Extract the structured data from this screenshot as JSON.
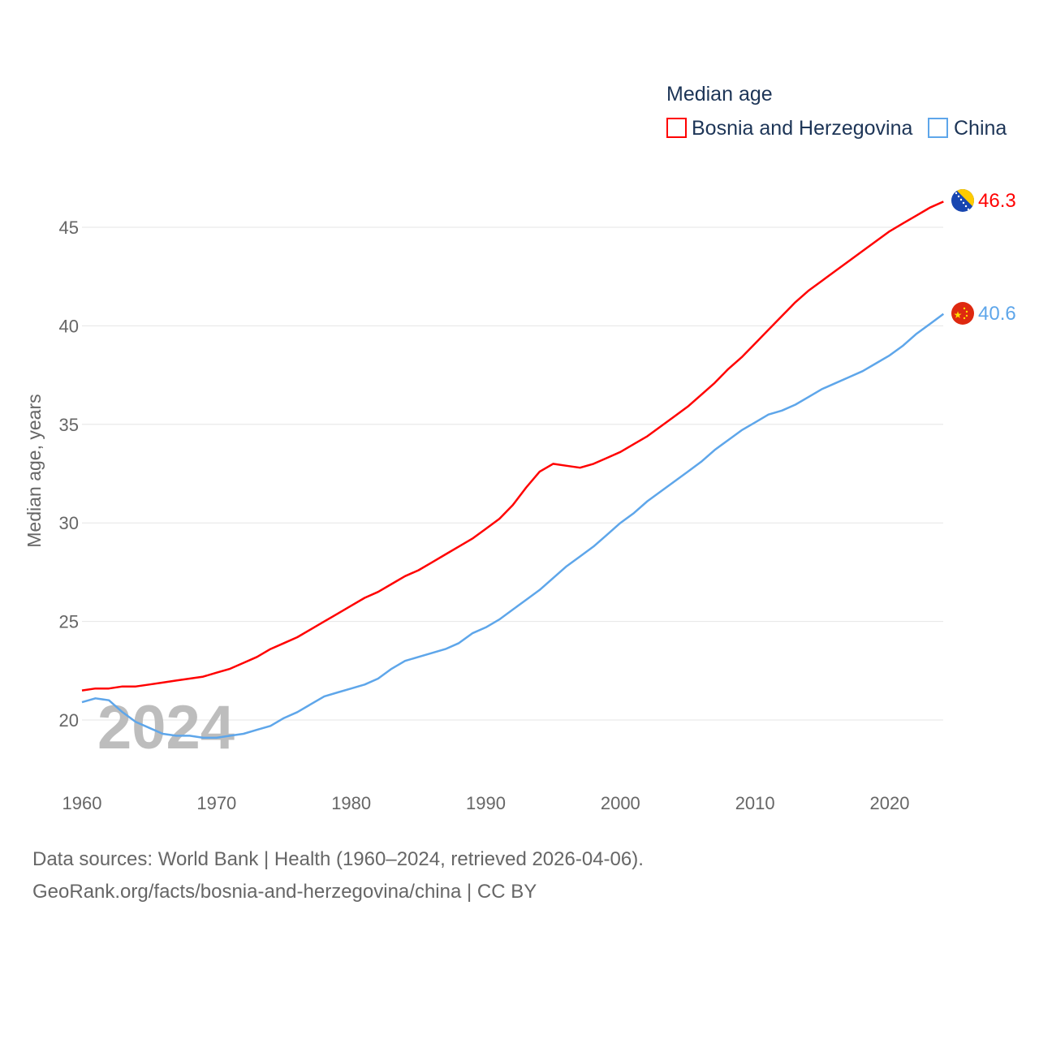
{
  "chart_data": {
    "type": "line",
    "title": "Median age",
    "xlabel": "",
    "ylabel": "Median age, years",
    "xlim": [
      1960,
      2024
    ],
    "ylim": [
      17.3,
      48
    ],
    "x_ticks": [
      1960,
      1970,
      1980,
      1990,
      2000,
      2010,
      2020
    ],
    "y_ticks": [
      20,
      25,
      30,
      35,
      40,
      45
    ],
    "grid": true,
    "legend_position": "top-right",
    "year_watermark": "2024",
    "x_start": 1960,
    "series": [
      {
        "name": "Bosnia and Herzegovina",
        "color": "#ff0000",
        "end_label": "46.3",
        "flag": "bosnia-flag",
        "values": [
          21.5,
          21.6,
          21.6,
          21.7,
          21.7,
          21.8,
          21.9,
          22.0,
          22.1,
          22.2,
          22.4,
          22.6,
          22.9,
          23.2,
          23.6,
          23.9,
          24.2,
          24.6,
          25.0,
          25.4,
          25.8,
          26.2,
          26.5,
          26.9,
          27.3,
          27.6,
          28.0,
          28.4,
          28.8,
          29.2,
          29.7,
          30.2,
          30.9,
          31.8,
          32.6,
          33.0,
          32.9,
          32.8,
          33.0,
          33.3,
          33.6,
          34.0,
          34.4,
          34.9,
          35.4,
          35.9,
          36.5,
          37.1,
          37.8,
          38.4,
          39.1,
          39.8,
          40.5,
          41.2,
          41.8,
          42.3,
          42.8,
          43.3,
          43.8,
          44.3,
          44.8,
          45.2,
          45.6,
          46.0,
          46.3
        ]
      },
      {
        "name": "China",
        "color": "#5ea6ea",
        "end_label": "40.6",
        "flag": "china-flag",
        "values": [
          20.9,
          21.1,
          21.0,
          20.4,
          19.9,
          19.6,
          19.3,
          19.2,
          19.2,
          19.1,
          19.1,
          19.2,
          19.3,
          19.5,
          19.7,
          20.1,
          20.4,
          20.8,
          21.2,
          21.4,
          21.6,
          21.8,
          22.1,
          22.6,
          23.0,
          23.2,
          23.4,
          23.6,
          23.9,
          24.4,
          24.7,
          25.1,
          25.6,
          26.1,
          26.6,
          27.2,
          27.8,
          28.3,
          28.8,
          29.4,
          30.0,
          30.5,
          31.1,
          31.6,
          32.1,
          32.6,
          33.1,
          33.7,
          34.2,
          34.7,
          35.1,
          35.5,
          35.7,
          36.0,
          36.4,
          36.8,
          37.1,
          37.4,
          37.7,
          38.1,
          38.5,
          39.0,
          39.6,
          40.1,
          40.6
        ]
      }
    ]
  },
  "footer": {
    "line1": "Data sources: World Bank | Health (1960–2024, retrieved 2026-04-06).",
    "line2": "GeoRank.org/facts/bosnia-and-herzegovina/china | CC BY"
  }
}
